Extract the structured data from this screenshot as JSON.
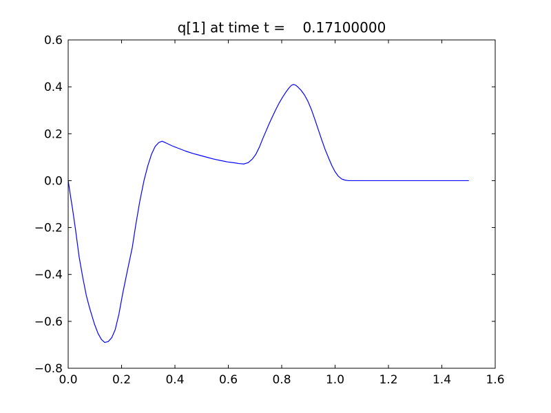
{
  "figure": {
    "background": "#ffffff"
  },
  "chart_data": {
    "type": "line",
    "title": "q[1] at time t =    0.17100000",
    "xlabel": "",
    "ylabel": "",
    "xlim": [
      0.0,
      1.6
    ],
    "ylim": [
      -0.8,
      0.6
    ],
    "grid": false,
    "legend": "none",
    "axis_color": "#000000",
    "x_ticks": [
      {
        "label": "0.0",
        "value": 0.0
      },
      {
        "label": "0.2",
        "value": 0.2
      },
      {
        "label": "0.4",
        "value": 0.4
      },
      {
        "label": "0.6",
        "value": 0.6
      },
      {
        "label": "0.8",
        "value": 0.8
      },
      {
        "label": "1.0",
        "value": 1.0
      },
      {
        "label": "1.2",
        "value": 1.2
      },
      {
        "label": "1.4",
        "value": 1.4
      },
      {
        "label": "1.6",
        "value": 1.6
      }
    ],
    "y_ticks": [
      {
        "label": "0.6",
        "value": 0.6
      },
      {
        "label": "0.4",
        "value": 0.4
      },
      {
        "label": "0.2",
        "value": 0.2
      },
      {
        "label": "0.0",
        "value": 0.0
      },
      {
        "label": "−0.2",
        "value": -0.2
      },
      {
        "label": "−0.4",
        "value": -0.4
      },
      {
        "label": "−0.6",
        "value": -0.6
      },
      {
        "label": "−0.8",
        "value": -0.8
      }
    ],
    "series": [
      {
        "name": "q[1]",
        "color": "#0000ff",
        "points": [
          [
            0.0,
            0.0
          ],
          [
            0.004,
            -0.03
          ],
          [
            0.01,
            -0.075
          ],
          [
            0.016,
            -0.118
          ],
          [
            0.028,
            -0.213
          ],
          [
            0.041,
            -0.325
          ],
          [
            0.055,
            -0.415
          ],
          [
            0.068,
            -0.49
          ],
          [
            0.08,
            -0.542
          ],
          [
            0.098,
            -0.61
          ],
          [
            0.112,
            -0.652
          ],
          [
            0.125,
            -0.678
          ],
          [
            0.137,
            -0.69
          ],
          [
            0.15,
            -0.686
          ],
          [
            0.163,
            -0.67
          ],
          [
            0.176,
            -0.636
          ],
          [
            0.19,
            -0.57
          ],
          [
            0.204,
            -0.483
          ],
          [
            0.222,
            -0.383
          ],
          [
            0.24,
            -0.286
          ],
          [
            0.253,
            -0.19
          ],
          [
            0.268,
            -0.09
          ],
          [
            0.284,
            0.0
          ],
          [
            0.298,
            0.062
          ],
          [
            0.312,
            0.112
          ],
          [
            0.326,
            0.146
          ],
          [
            0.34,
            0.163
          ],
          [
            0.352,
            0.168
          ],
          [
            0.364,
            0.162
          ],
          [
            0.39,
            0.148
          ],
          [
            0.415,
            0.137
          ],
          [
            0.44,
            0.126
          ],
          [
            0.467,
            0.116
          ],
          [
            0.493,
            0.108
          ],
          [
            0.519,
            0.1
          ],
          [
            0.545,
            0.092
          ],
          [
            0.57,
            0.086
          ],
          [
            0.596,
            0.08
          ],
          [
            0.622,
            0.076
          ],
          [
            0.64,
            0.073
          ],
          [
            0.658,
            0.071
          ],
          [
            0.675,
            0.077
          ],
          [
            0.69,
            0.092
          ],
          [
            0.703,
            0.112
          ],
          [
            0.716,
            0.142
          ],
          [
            0.728,
            0.176
          ],
          [
            0.74,
            0.208
          ],
          [
            0.752,
            0.24
          ],
          [
            0.764,
            0.27
          ],
          [
            0.777,
            0.301
          ],
          [
            0.79,
            0.33
          ],
          [
            0.803,
            0.355
          ],
          [
            0.816,
            0.378
          ],
          [
            0.828,
            0.396
          ],
          [
            0.836,
            0.406
          ],
          [
            0.843,
            0.41
          ],
          [
            0.851,
            0.408
          ],
          [
            0.86,
            0.4
          ],
          [
            0.872,
            0.386
          ],
          [
            0.885,
            0.366
          ],
          [
            0.898,
            0.339
          ],
          [
            0.911,
            0.304
          ],
          [
            0.924,
            0.262
          ],
          [
            0.937,
            0.218
          ],
          [
            0.95,
            0.174
          ],
          [
            0.963,
            0.132
          ],
          [
            0.976,
            0.096
          ],
          [
            0.988,
            0.064
          ],
          [
            1.0,
            0.038
          ],
          [
            1.012,
            0.019
          ],
          [
            1.025,
            0.007
          ],
          [
            1.038,
            0.002
          ],
          [
            1.05,
            0.0
          ],
          [
            1.1,
            0.0
          ],
          [
            1.15,
            0.0
          ],
          [
            1.2,
            0.0
          ],
          [
            1.25,
            0.0
          ],
          [
            1.3,
            0.0
          ],
          [
            1.35,
            0.0
          ],
          [
            1.4,
            0.0
          ],
          [
            1.45,
            0.0
          ],
          [
            1.5,
            0.0
          ]
        ]
      }
    ]
  }
}
